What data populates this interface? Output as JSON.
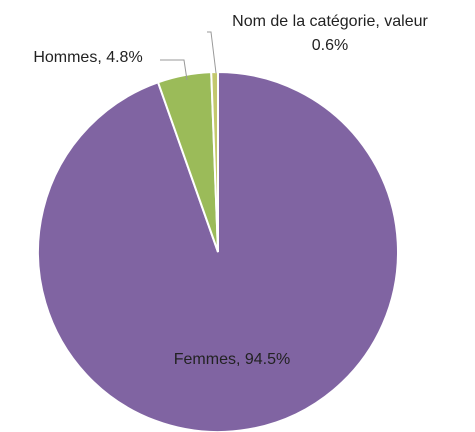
{
  "chart_data": {
    "type": "pie",
    "values": [
      94.5,
      4.8,
      0.6
    ],
    "value_labels": [
      "Femmes, 94.5%",
      "Hommes, 4.8%",
      [
        "Nom de la catégorie, valeur",
        "0.6%"
      ]
    ],
    "colors": [
      "#8064a2",
      "#9bbb59",
      "#c3c86e"
    ]
  }
}
